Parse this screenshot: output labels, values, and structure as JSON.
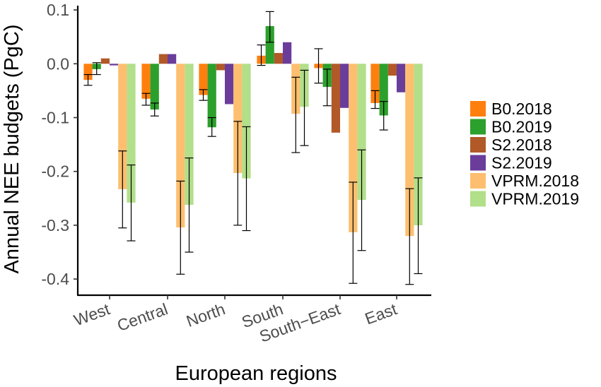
{
  "chart_data": {
    "type": "bar",
    "title": "",
    "xlabel": "European regions",
    "ylabel": "Annual NEE budgets (PgC)",
    "ylim": [
      -0.43,
      0.11
    ],
    "yticks": [
      0.1,
      0.0,
      -0.1,
      -0.2,
      -0.3,
      -0.4
    ],
    "ytick_labels": [
      "0.1",
      "0.0",
      "-0.1",
      "-0.2",
      "-0.3",
      "-0.4"
    ],
    "grid": false,
    "legend_position": "right",
    "error_bars": true,
    "categories": [
      "West",
      "Central",
      "North",
      "South",
      "South−East",
      "East"
    ],
    "series": [
      {
        "name": "B0.2018",
        "color": "#ff7f0e",
        "values": [
          -0.03,
          -0.065,
          -0.058,
          0.015,
          -0.008,
          -0.073
        ],
        "error_low": [
          -0.04,
          -0.077,
          -0.068,
          -0.003,
          -0.036,
          -0.083
        ],
        "error_high": [
          -0.02,
          -0.055,
          -0.048,
          0.035,
          0.028,
          -0.05
        ]
      },
      {
        "name": "B0.2019",
        "color": "#2ca02c",
        "values": [
          -0.01,
          -0.085,
          -0.118,
          0.07,
          -0.043,
          -0.096
        ],
        "error_low": [
          -0.02,
          -0.097,
          -0.135,
          0.04,
          -0.078,
          -0.123
        ],
        "error_high": [
          0.002,
          -0.073,
          -0.1,
          0.097,
          -0.01,
          -0.07
        ]
      },
      {
        "name": "S2.2018",
        "color": "#b15928",
        "values": [
          0.01,
          0.018,
          -0.012,
          0.02,
          -0.128,
          -0.022
        ],
        "error_low": [],
        "error_high": []
      },
      {
        "name": "S2.2019",
        "color": "#6a3d9a",
        "values": [
          -0.003,
          0.018,
          -0.075,
          0.04,
          -0.082,
          -0.053
        ],
        "error_low": [],
        "error_high": []
      },
      {
        "name": "VPRM.2018",
        "color": "#fdbf6f",
        "values": [
          -0.233,
          -0.304,
          -0.203,
          -0.093,
          -0.313,
          -0.32
        ],
        "error_low": [
          -0.305,
          -0.391,
          -0.3,
          -0.165,
          -0.408,
          -0.41
        ],
        "error_high": [
          -0.162,
          -0.218,
          -0.107,
          -0.025,
          -0.22,
          -0.232
        ]
      },
      {
        "name": "VPRM.2019",
        "color": "#b2df8a",
        "values": [
          -0.258,
          -0.262,
          -0.213,
          -0.08,
          -0.253,
          -0.3
        ],
        "error_low": [
          -0.329,
          -0.35,
          -0.31,
          -0.152,
          -0.347,
          -0.39
        ],
        "error_high": [
          -0.188,
          -0.175,
          -0.117,
          -0.012,
          -0.16,
          -0.212
        ]
      }
    ]
  }
}
